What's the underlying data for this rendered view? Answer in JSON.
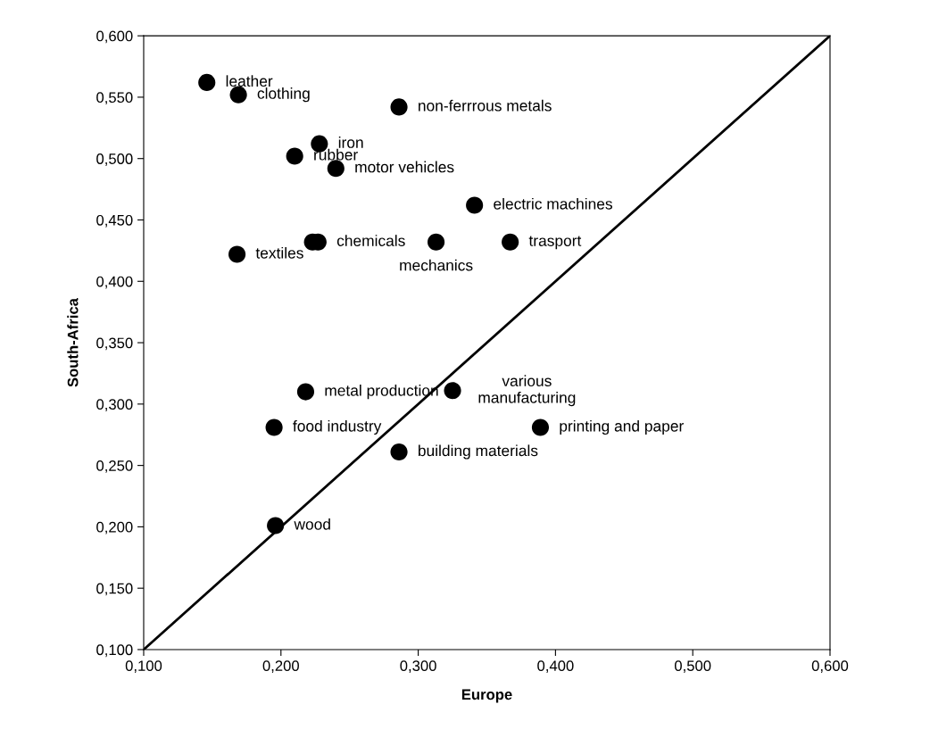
{
  "chart_data": {
    "type": "scatter",
    "xlabel": "Europe",
    "ylabel": "South-Africa",
    "xlim": [
      0.1,
      0.6
    ],
    "ylim": [
      0.1,
      0.6
    ],
    "xticks": [
      {
        "value": 0.1,
        "label": "0,100"
      },
      {
        "value": 0.2,
        "label": "0,200"
      },
      {
        "value": 0.3,
        "label": "0,300"
      },
      {
        "value": 0.4,
        "label": "0,400"
      },
      {
        "value": 0.5,
        "label": "0,500"
      },
      {
        "value": 0.6,
        "label": "0,600"
      }
    ],
    "yticks": [
      {
        "value": 0.1,
        "label": "0,100"
      },
      {
        "value": 0.15,
        "label": "0,150"
      },
      {
        "value": 0.2,
        "label": "0,200"
      },
      {
        "value": 0.25,
        "label": "0,250"
      },
      {
        "value": 0.3,
        "label": "0,300"
      },
      {
        "value": 0.35,
        "label": "0,350"
      },
      {
        "value": 0.4,
        "label": "0,400"
      },
      {
        "value": 0.45,
        "label": "0,450"
      },
      {
        "value": 0.5,
        "label": "0,500"
      },
      {
        "value": 0.55,
        "label": "0,550"
      },
      {
        "value": 0.6,
        "label": "0,600"
      }
    ],
    "grid": false,
    "legend": false,
    "series": [
      {
        "color": "#000000",
        "marker": "circle",
        "x": [
          0.146,
          0.169,
          0.286,
          0.228,
          0.21,
          0.24,
          0.341,
          0.223,
          0.227,
          0.313,
          0.367,
          0.168,
          0.218,
          0.325,
          0.195,
          0.389,
          0.286,
          0.196
        ],
        "values": [
          0.562,
          0.552,
          0.542,
          0.512,
          0.502,
          0.492,
          0.462,
          0.432,
          0.432,
          0.432,
          0.432,
          0.422,
          0.31,
          0.311,
          0.281,
          0.281,
          0.261,
          0.201
        ]
      },
      {
        "type": "line",
        "color": "#000000",
        "marker": "none",
        "line_style": "solid",
        "x": [
          0.1,
          0.6
        ],
        "values": [
          0.1,
          0.6
        ]
      }
    ],
    "annotations": [
      {
        "text": "leather",
        "x": 0.146,
        "y": 0.562
      },
      {
        "text": "clothing",
        "x": 0.169,
        "y": 0.552
      },
      {
        "text": "non-ferrrous metals",
        "x": 0.286,
        "y": 0.542
      },
      {
        "text": "iron",
        "x": 0.228,
        "y": 0.512
      },
      {
        "text": "rubber",
        "x": 0.21,
        "y": 0.502
      },
      {
        "text": "motor vehicles",
        "x": 0.24,
        "y": 0.492
      },
      {
        "text": "electric machines",
        "x": 0.341,
        "y": 0.462
      },
      {
        "text": "chemicals",
        "x": 0.227,
        "y": 0.432
      },
      {
        "text": "mechanics",
        "x": 0.313,
        "y": 0.432
      },
      {
        "text": "trasport",
        "x": 0.367,
        "y": 0.432
      },
      {
        "text": "textiles",
        "x": 0.168,
        "y": 0.422
      },
      {
        "text": "metal production",
        "x": 0.218,
        "y": 0.31
      },
      {
        "text": "various\nmanufacturing",
        "x": 0.325,
        "y": 0.311
      },
      {
        "text": "food industry",
        "x": 0.195,
        "y": 0.281
      },
      {
        "text": "printing and paper",
        "x": 0.389,
        "y": 0.281
      },
      {
        "text": "building materials",
        "x": 0.286,
        "y": 0.261
      },
      {
        "text": "wood",
        "x": 0.196,
        "y": 0.201
      }
    ]
  }
}
